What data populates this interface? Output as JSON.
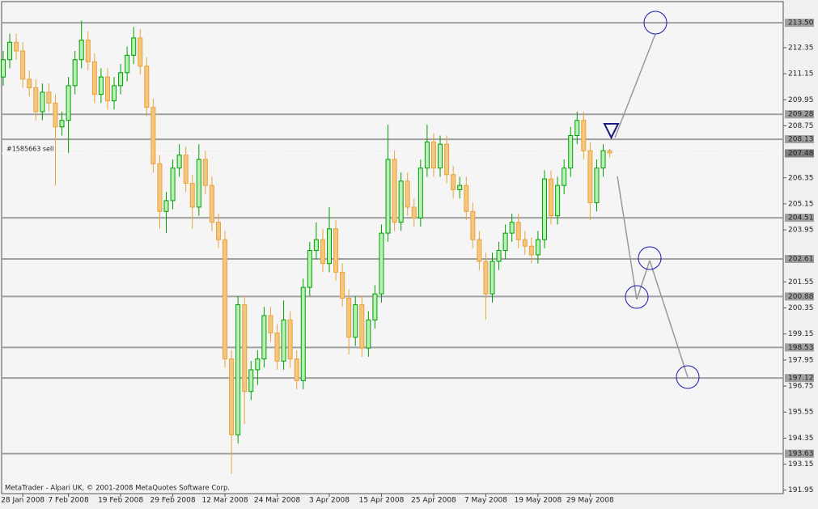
{
  "chart_data": {
    "type": "candlestick",
    "annotation": "#1585663 sell",
    "footer": "MetaTrader - Alpari UK, © 2001-2008 MetaQuotes Software Corp.",
    "categories": [
      null,
      null,
      null,
      "28 Jan 2008",
      null,
      null,
      null,
      null,
      null,
      null,
      "7 Feb 2008",
      null,
      null,
      null,
      null,
      null,
      null,
      null,
      "19 Feb 2008",
      null,
      null,
      null,
      null,
      null,
      null,
      null,
      "29 Feb 2008",
      null,
      null,
      null,
      null,
      null,
      null,
      null,
      "12 Mar 2008",
      null,
      null,
      null,
      null,
      null,
      null,
      null,
      "24 Mar 2008",
      null,
      null,
      null,
      null,
      null,
      null,
      null,
      "3 Apr 2008",
      null,
      null,
      null,
      null,
      null,
      null,
      null,
      "15 Apr 2008",
      null,
      null,
      null,
      null,
      null,
      null,
      null,
      "25 Apr 2008",
      null,
      null,
      null,
      null,
      null,
      null,
      null,
      "7 May 2008",
      null,
      null,
      null,
      null,
      null,
      null,
      null,
      "19 May 2008",
      null,
      null,
      null,
      null,
      null,
      null,
      null,
      "29 May 2008",
      null,
      null,
      null
    ],
    "open": [
      211.0,
      211.8,
      212.6,
      212.2,
      210.9,
      210.5,
      209.4,
      210.3,
      209.8,
      208.7,
      209.0,
      210.6,
      211.8,
      212.7,
      211.7,
      210.2,
      211.0,
      209.9,
      210.6,
      211.2,
      212.0,
      212.8,
      211.5,
      209.6,
      207.0,
      204.8,
      205.3,
      206.8,
      207.4,
      206.1,
      205.0,
      207.2,
      206.0,
      204.3,
      203.5,
      198.0,
      194.5,
      200.5,
      196.5,
      197.5,
      198.0,
      200.0,
      199.2,
      197.9,
      199.8,
      198.0,
      197.0,
      201.3,
      203.0,
      203.5,
      202.4,
      204.0,
      202.0,
      200.8,
      199.0,
      200.5,
      198.5,
      199.8,
      201.0,
      203.8,
      207.2,
      204.3,
      206.2,
      205.0,
      204.5,
      206.8,
      208.0,
      206.8,
      207.9,
      206.5,
      205.8,
      206.0,
      204.8,
      203.5,
      202.5,
      201.0,
      202.5,
      203.0,
      203.8,
      204.3,
      203.5,
      203.2,
      202.8,
      203.5,
      206.3,
      204.6,
      206.0,
      206.8,
      208.3,
      209.0,
      207.6,
      205.2,
      206.8,
      207.6
    ],
    "high": [
      212.2,
      213.0,
      213.0,
      212.6,
      211.3,
      210.9,
      210.7,
      210.7,
      210.2,
      209.4,
      211.0,
      212.2,
      213.6,
      213.1,
      212.1,
      211.4,
      211.4,
      211.0,
      211.6,
      212.4,
      213.3,
      213.2,
      211.9,
      210.0,
      207.4,
      205.7,
      207.2,
      207.9,
      207.8,
      206.5,
      207.9,
      207.6,
      206.4,
      204.7,
      203.9,
      198.4,
      200.9,
      200.9,
      197.9,
      198.4,
      200.4,
      200.4,
      199.6,
      200.7,
      200.2,
      198.4,
      201.7,
      203.4,
      204.3,
      204.0,
      205.0,
      204.4,
      202.4,
      201.2,
      200.9,
      200.9,
      200.2,
      201.4,
      204.2,
      208.8,
      207.6,
      206.6,
      206.6,
      205.4,
      207.2,
      208.8,
      208.4,
      208.3,
      208.3,
      206.9,
      206.4,
      206.4,
      205.2,
      203.9,
      202.9,
      202.9,
      203.4,
      204.2,
      204.7,
      204.7,
      203.9,
      203.6,
      203.9,
      206.7,
      206.7,
      206.4,
      207.2,
      208.7,
      209.4,
      209.4,
      208.0,
      207.2,
      207.9,
      207.7
    ],
    "low": [
      210.6,
      211.4,
      211.8,
      210.5,
      210.1,
      209.0,
      209.0,
      209.4,
      206.0,
      208.3,
      207.5,
      210.2,
      211.4,
      211.3,
      209.8,
      209.8,
      209.5,
      209.5,
      210.2,
      210.8,
      211.6,
      211.1,
      209.2,
      206.6,
      204.0,
      203.8,
      204.9,
      206.4,
      205.7,
      204.0,
      204.6,
      205.6,
      203.9,
      203.1,
      197.6,
      192.7,
      194.1,
      195.0,
      196.1,
      196.8,
      197.6,
      198.8,
      197.5,
      197.5,
      197.6,
      196.6,
      196.6,
      200.9,
      202.6,
      202.0,
      202.0,
      201.6,
      200.4,
      198.2,
      198.6,
      198.1,
      198.1,
      199.4,
      200.6,
      203.4,
      203.9,
      203.9,
      204.6,
      204.1,
      204.1,
      206.4,
      206.4,
      206.4,
      206.1,
      205.4,
      205.4,
      204.4,
      203.1,
      202.1,
      199.8,
      200.6,
      202.1,
      202.6,
      203.4,
      203.1,
      202.8,
      202.4,
      202.4,
      203.1,
      204.2,
      204.2,
      205.6,
      206.4,
      207.9,
      207.2,
      204.4,
      204.8,
      206.4,
      207.3
    ],
    "close": [
      211.8,
      212.6,
      212.2,
      210.9,
      210.5,
      209.4,
      210.3,
      209.8,
      208.7,
      209.0,
      210.6,
      211.8,
      212.7,
      211.7,
      210.2,
      211.0,
      209.9,
      210.6,
      211.2,
      212.0,
      212.8,
      211.5,
      209.6,
      207.0,
      204.8,
      205.3,
      206.8,
      207.4,
      206.1,
      205.0,
      207.2,
      206.0,
      204.3,
      203.5,
      198.0,
      194.5,
      200.5,
      196.5,
      197.5,
      198.0,
      200.0,
      199.2,
      197.9,
      199.8,
      198.0,
      197.0,
      201.3,
      203.0,
      203.5,
      202.4,
      204.0,
      202.0,
      200.8,
      199.0,
      200.5,
      198.5,
      199.8,
      201.0,
      203.8,
      207.2,
      204.3,
      206.2,
      205.0,
      204.5,
      206.8,
      208.0,
      206.8,
      207.9,
      206.5,
      205.8,
      206.0,
      204.8,
      203.5,
      202.5,
      201.0,
      202.5,
      203.0,
      203.8,
      204.3,
      203.5,
      203.2,
      202.8,
      203.5,
      206.3,
      204.6,
      206.0,
      206.8,
      208.3,
      209.0,
      207.6,
      205.2,
      206.8,
      207.6,
      207.5
    ],
    "up_color": "#00a000",
    "down_color": "#e8a33c",
    "ylim": [
      191.79,
      214.55
    ],
    "yticks": [
      212.35,
      211.15,
      209.95,
      208.75,
      206.35,
      205.15,
      203.95,
      201.55,
      200.35,
      199.15,
      197.95,
      196.75,
      195.55,
      194.35,
      193.15,
      191.95
    ],
    "levels": [
      {
        "value": 213.5,
        "label": "213.50"
      },
      {
        "value": 209.28,
        "label": "209.28"
      },
      {
        "value": 208.13,
        "label": "208.13"
      },
      {
        "value": 204.51,
        "label": "204.51"
      },
      {
        "value": 202.61,
        "label": "202.61"
      },
      {
        "value": 200.88,
        "label": "200.88"
      },
      {
        "value": 198.53,
        "label": "198.53"
      },
      {
        "value": 197.12,
        "label": "197.12"
      },
      {
        "value": 193.63,
        "label": "193.63"
      }
    ],
    "current_price": 207.48
  }
}
